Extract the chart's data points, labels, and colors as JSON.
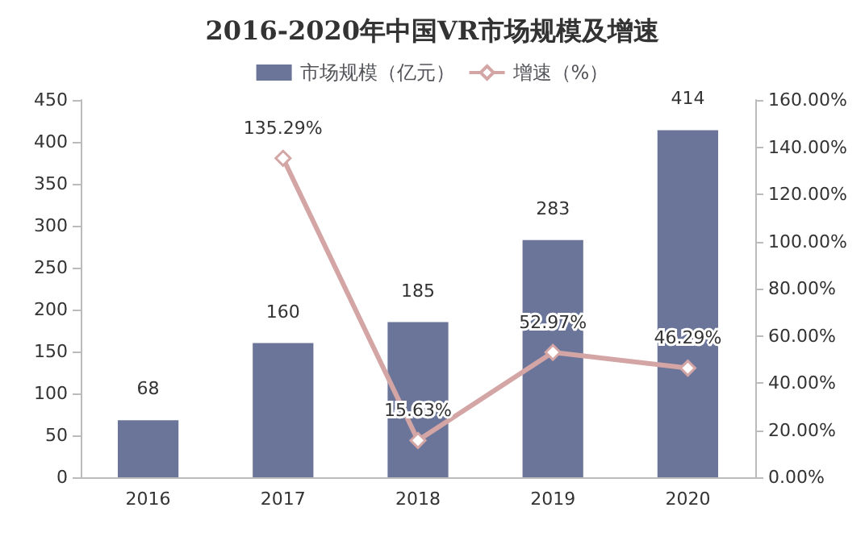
{
  "chart_data": {
    "type": "bar",
    "title": "2016-2020年中国VR市场规模及增速",
    "categories": [
      "2016",
      "2017",
      "2018",
      "2019",
      "2020"
    ],
    "series": [
      {
        "name": "市场规模（亿元）",
        "color": "#6b7599",
        "values": [
          68,
          160,
          185,
          283,
          414
        ],
        "value_labels": [
          "68",
          "160",
          "185",
          "283",
          "414"
        ]
      },
      {
        "name": "增速（%）",
        "type": "line",
        "axis": "y2",
        "color": "#d4a5a5",
        "marker": "diamond",
        "values": [
          null,
          135.29,
          15.63,
          52.97,
          46.29
        ],
        "value_labels": [
          null,
          "135.29%",
          "15.63%",
          "52.97%",
          "46.29%"
        ]
      }
    ],
    "ylim": [
      0,
      450
    ],
    "yticks": [
      0,
      50,
      100,
      150,
      200,
      250,
      300,
      350,
      400,
      450
    ],
    "y2lim": [
      0,
      160
    ],
    "y2ticks": [
      {
        "value": 0,
        "label": "0.00%"
      },
      {
        "value": 20,
        "label": "20.00%"
      },
      {
        "value": 40,
        "label": "40.00%"
      },
      {
        "value": 60,
        "label": "60.00%"
      },
      {
        "value": 80,
        "label": "80.00%"
      },
      {
        "value": 100,
        "label": "100.00%"
      },
      {
        "value": 120,
        "label": "120.00%"
      },
      {
        "value": 140,
        "label": "140.00%"
      },
      {
        "value": 160,
        "label": "160.00%"
      }
    ],
    "legend": "top"
  }
}
